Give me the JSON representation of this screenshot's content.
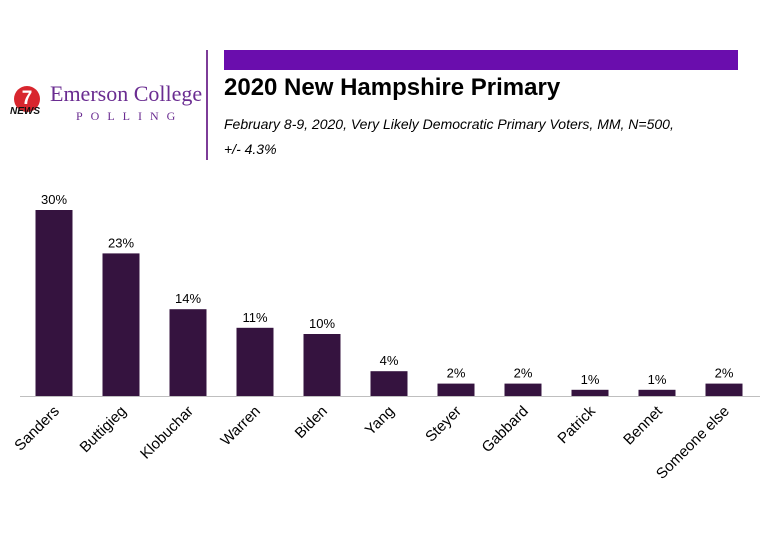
{
  "colors": {
    "accent": "#6a0dad",
    "bar": "#35133f",
    "brand": "#6a2c91"
  },
  "logo": {
    "badge": "7",
    "news": "NEWS",
    "college": "Emerson College",
    "polling": "POLLING"
  },
  "chart_data": {
    "type": "bar",
    "title": "2020 New Hampshire Primary",
    "subtitle_line1": "February 8-9, 2020, Very Likely Democratic Primary Voters, MM,  N=500,",
    "subtitle_line2": "+/-  4.3%",
    "categories": [
      "Sanders",
      "Buttigieg",
      "Klobuchar",
      "Warren",
      "Biden",
      "Yang",
      "Steyer",
      "Gabbard",
      "Patrick",
      "Bennet",
      "Someone else"
    ],
    "values": [
      30,
      23,
      14,
      11,
      10,
      4,
      2,
      2,
      1,
      1,
      2
    ],
    "value_labels": [
      "30%",
      "23%",
      "14%",
      "11%",
      "10%",
      "4%",
      "2%",
      "2%",
      "1%",
      "1%",
      "2%"
    ],
    "ylim": [
      0,
      30
    ],
    "grid": false,
    "legend": "none"
  }
}
